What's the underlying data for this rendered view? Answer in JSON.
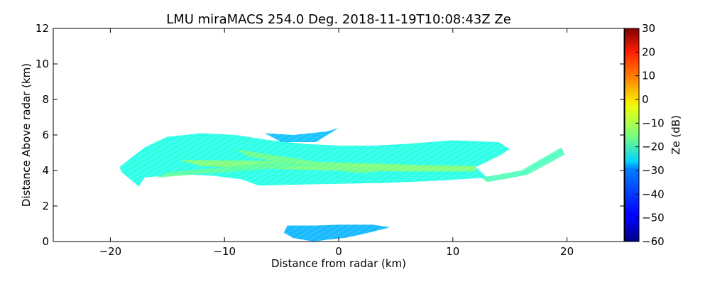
{
  "chart_data": {
    "type": "heatmap",
    "title": "LMU miraMACS 254.0 Deg. 2018-11-19T10:08:43Z  Ze",
    "xlabel": "Distance from radar (km)",
    "ylabel": "Distance Above radar  (km)",
    "xlim": [
      -25,
      25
    ],
    "ylim": [
      0,
      12
    ],
    "xticks": [
      -20,
      -10,
      0,
      10,
      20
    ],
    "xtick_labels": [
      "−20",
      "−10",
      "0",
      "10",
      "20"
    ],
    "yticks": [
      0,
      2,
      4,
      6,
      8,
      10,
      12
    ],
    "ytick_labels": [
      "0",
      "2",
      "4",
      "6",
      "8",
      "10",
      "12"
    ],
    "colorbar": {
      "label": "Ze (dB)",
      "colormap": "jet",
      "range": [
        -60,
        30
      ],
      "ticks": [
        30,
        20,
        10,
        0,
        -10,
        -20,
        -30,
        -40,
        -50,
        -60
      ],
      "tick_labels": [
        "30",
        "20",
        "10",
        "0",
        "−10",
        "−20",
        "−30",
        "−40",
        "−50",
        "−60"
      ]
    },
    "regions": [
      {
        "name": "upper cloud layer",
        "ze_dB": -24,
        "polygon": [
          [
            -19.2,
            4.2
          ],
          [
            -17.0,
            5.3
          ],
          [
            -15.0,
            5.9
          ],
          [
            -12.0,
            6.1
          ],
          [
            -9.0,
            6.0
          ],
          [
            -6.0,
            5.7
          ],
          [
            -3.0,
            5.5
          ],
          [
            0.0,
            5.4
          ],
          [
            3.0,
            5.4
          ],
          [
            6.0,
            5.5
          ],
          [
            10.0,
            5.7
          ],
          [
            14.0,
            5.6
          ],
          [
            15.0,
            5.2
          ],
          [
            14.0,
            4.8
          ],
          [
            12.0,
            4.2
          ],
          [
            13.0,
            3.6
          ],
          [
            8.0,
            3.4
          ],
          [
            4.0,
            3.3
          ],
          [
            0.0,
            3.25
          ],
          [
            -4.0,
            3.2
          ],
          [
            -7.0,
            3.15
          ],
          [
            -8.5,
            3.5
          ],
          [
            -11.0,
            3.7
          ],
          [
            -14.0,
            3.8
          ],
          [
            -17.0,
            3.6
          ],
          [
            -17.5,
            3.1
          ],
          [
            -19.0,
            3.9
          ]
        ]
      },
      {
        "name": "right tail",
        "ze_dB": -20,
        "polygon": [
          [
            12.5,
            3.6
          ],
          [
            16.0,
            4.0
          ],
          [
            19.5,
            5.3
          ],
          [
            19.8,
            4.9
          ],
          [
            16.5,
            3.75
          ],
          [
            13.0,
            3.35
          ]
        ]
      },
      {
        "name": "upper cloud tops",
        "ze_dB": -32,
        "polygon": [
          [
            -6.5,
            6.1
          ],
          [
            -4.0,
            6.0
          ],
          [
            -1.0,
            6.2
          ],
          [
            0.0,
            6.4
          ],
          [
            -2.0,
            5.6
          ],
          [
            -5.0,
            5.6
          ]
        ]
      },
      {
        "name": "lower echo",
        "ze_dB": -33,
        "polygon": [
          [
            -2.2,
            0.0
          ],
          [
            -1.0,
            0.1
          ],
          [
            0.5,
            0.2
          ],
          [
            2.0,
            0.4
          ],
          [
            4.5,
            0.8
          ],
          [
            3.0,
            0.95
          ],
          [
            0.0,
            0.95
          ],
          [
            -2.0,
            0.9
          ],
          [
            -4.5,
            0.9
          ],
          [
            -4.8,
            0.5
          ],
          [
            -4.0,
            0.2
          ]
        ]
      },
      {
        "name": "embedded band",
        "ze_dB": -14,
        "polygon": [
          [
            -14.0,
            4.6
          ],
          [
            -8.0,
            4.55
          ],
          [
            -3.0,
            4.5
          ],
          [
            2.0,
            4.4
          ],
          [
            8.0,
            4.3
          ],
          [
            12.0,
            4.25
          ],
          [
            12.0,
            3.95
          ],
          [
            6.0,
            3.95
          ],
          [
            0.0,
            4.0
          ],
          [
            -6.0,
            4.1
          ],
          [
            -12.0,
            4.25
          ]
        ]
      },
      {
        "name": "embedded band 2",
        "ze_dB": -16,
        "polygon": [
          [
            -9.0,
            5.2
          ],
          [
            -5.0,
            4.8
          ],
          [
            0.0,
            4.3
          ],
          [
            4.0,
            4.0
          ],
          [
            2.0,
            3.85
          ],
          [
            -3.0,
            4.2
          ],
          [
            -8.0,
            4.8
          ]
        ]
      },
      {
        "name": "embedded band 3",
        "ze_dB": -18,
        "polygon": [
          [
            -16.0,
            3.6
          ],
          [
            -12.0,
            3.8
          ],
          [
            -7.0,
            4.05
          ],
          [
            -2.0,
            4.3
          ],
          [
            -5.0,
            4.5
          ],
          [
            -10.0,
            4.2
          ],
          [
            -15.0,
            3.9
          ]
        ]
      }
    ]
  }
}
